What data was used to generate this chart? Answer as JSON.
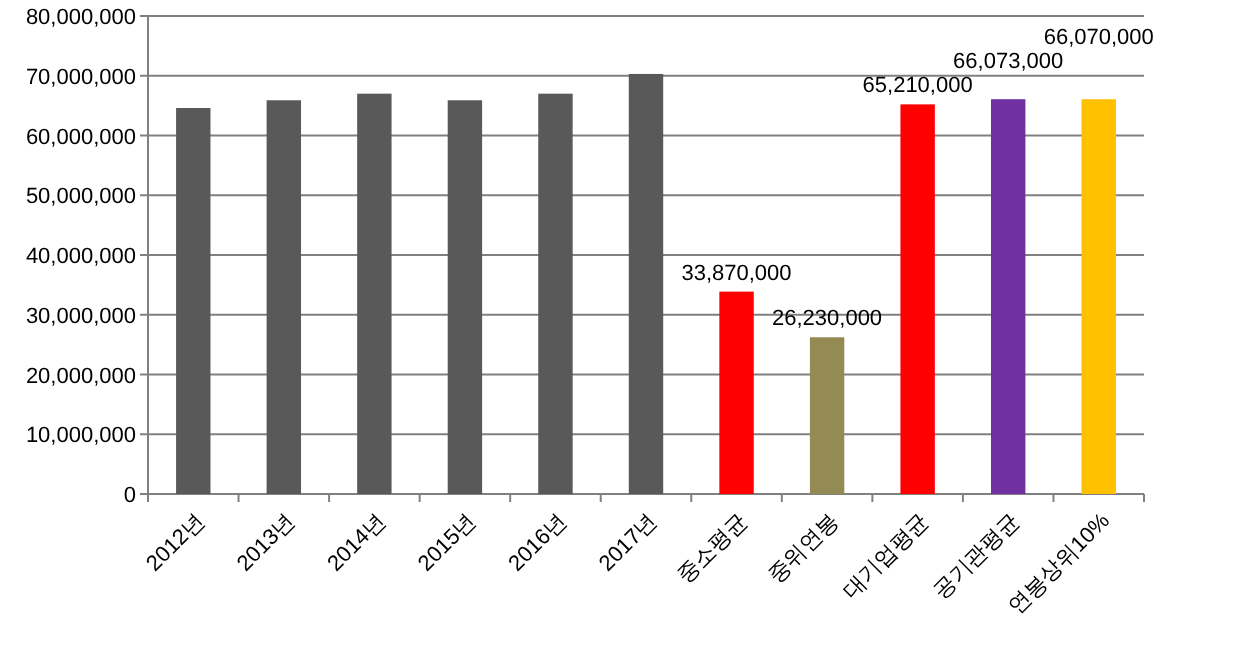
{
  "chart_data": {
    "type": "bar",
    "categories": [
      "2012년",
      "2013년",
      "2014년",
      "2015년",
      "2016년",
      "2017년",
      "중소평균",
      "중위연봉",
      "대기업평균",
      "공기관평균",
      "연봉상위10%"
    ],
    "values": [
      64600000,
      65900000,
      67000000,
      65900000,
      67000000,
      70300000,
      33870000,
      26230000,
      65210000,
      66073000,
      66070000
    ],
    "colors": [
      "#595959",
      "#595959",
      "#595959",
      "#595959",
      "#595959",
      "#595959",
      "#ff0000",
      "#948a54",
      "#ff0000",
      "#7030a0",
      "#ffc000"
    ],
    "value_labels": [
      null,
      null,
      null,
      null,
      null,
      null,
      "33,870,000",
      "26,230,000",
      "65,210,000",
      "66,073,000",
      "66,070,000"
    ],
    "ylim": [
      0,
      80000000
    ],
    "yticks": [
      {
        "value": 0,
        "label": "0"
      },
      {
        "value": 10000000,
        "label": "10,000,000"
      },
      {
        "value": 20000000,
        "label": "20,000,000"
      },
      {
        "value": 30000000,
        "label": "30,000,000"
      },
      {
        "value": 40000000,
        "label": "40,000,000"
      },
      {
        "value": 50000000,
        "label": "50,000,000"
      },
      {
        "value": 60000000,
        "label": "60,000,000"
      },
      {
        "value": 70000000,
        "label": "70,000,000"
      },
      {
        "value": 80000000,
        "label": "80,000,000"
      }
    ],
    "grid": "y"
  }
}
